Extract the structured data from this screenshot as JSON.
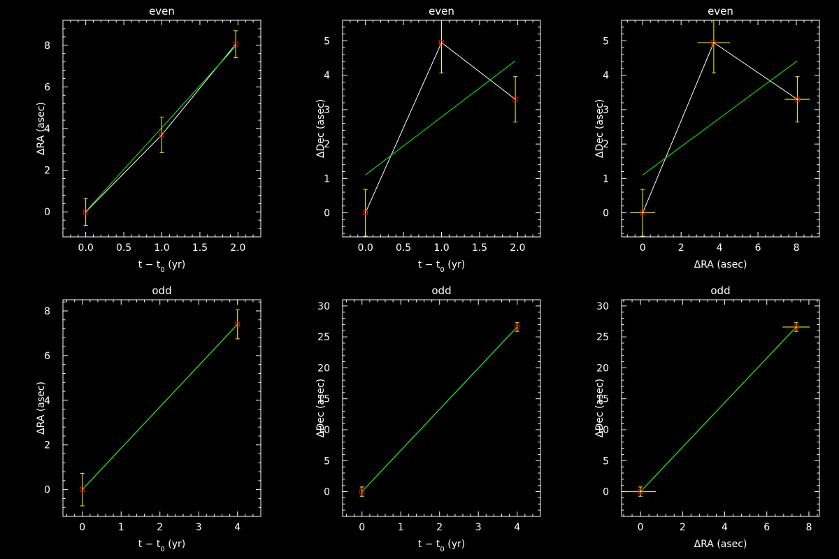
{
  "colors": {
    "background": "#000000",
    "axes": "#ffffff",
    "data_line": "#ffffff",
    "fit_line": "#00ff00",
    "error_bar": "#ffff00",
    "marker": "#ff0000"
  },
  "chart_data": [
    {
      "type": "line",
      "title": "even",
      "xlabel": "t − t",
      "xlabel_sub": "0",
      "xlabel_suffix": " (yr)",
      "ylabel": "ΔRA (asec)",
      "xlim": [
        -0.3,
        2.3
      ],
      "ylim": [
        -1.2,
        9.2
      ],
      "xticks": [
        0.0,
        0.5,
        1.0,
        1.5,
        2.0
      ],
      "xtick_labels": [
        "0.0",
        "0.5",
        "1.0",
        "1.5",
        "2.0"
      ],
      "yticks": [
        0,
        2,
        4,
        6,
        8
      ],
      "ytick_labels": [
        "0",
        "2",
        "4",
        "6",
        "8"
      ],
      "points": [
        {
          "x": 0.0,
          "y": 0.0,
          "yerr": 0.65
        },
        {
          "x": 1.0,
          "y": 3.7,
          "yerr": 0.85
        },
        {
          "x": 1.97,
          "y": 8.05,
          "yerr": 0.65
        }
      ],
      "fit": [
        [
          0.0,
          0.02
        ],
        [
          1.97,
          7.95
        ]
      ]
    },
    {
      "type": "line",
      "title": "even",
      "xlabel": "t − t",
      "xlabel_sub": "0",
      "xlabel_suffix": " (yr)",
      "ylabel": "ΔDec (asec)",
      "xlim": [
        -0.3,
        2.3
      ],
      "ylim": [
        -0.7,
        5.6
      ],
      "xticks": [
        0.0,
        0.5,
        1.0,
        1.5,
        2.0
      ],
      "xtick_labels": [
        "0.0",
        "0.5",
        "1.0",
        "1.5",
        "2.0"
      ],
      "yticks": [
        0,
        1,
        2,
        3,
        4,
        5
      ],
      "ytick_labels": [
        "0",
        "1",
        "2",
        "3",
        "4",
        "5"
      ],
      "points": [
        {
          "x": 0.0,
          "y": 0.0,
          "yerr": 0.68
        },
        {
          "x": 1.0,
          "y": 4.95,
          "yerr": 0.88
        },
        {
          "x": 1.97,
          "y": 3.3,
          "yerr": 0.66
        }
      ],
      "fit": [
        [
          0.0,
          1.1
        ],
        [
          1.97,
          4.42
        ]
      ]
    },
    {
      "type": "scatter",
      "title": "even",
      "xlabel": "ΔRA (asec)",
      "ylabel": "ΔDec (asec)",
      "xlim": [
        -1.1,
        9.2
      ],
      "ylim": [
        -0.7,
        5.6
      ],
      "xticks": [
        0,
        2,
        4,
        6,
        8
      ],
      "xtick_labels": [
        "0",
        "2",
        "4",
        "6",
        "8"
      ],
      "yticks": [
        0,
        1,
        2,
        3,
        4,
        5
      ],
      "ytick_labels": [
        "0",
        "1",
        "2",
        "3",
        "4",
        "5"
      ],
      "points": [
        {
          "x": 0.0,
          "y": 0.0,
          "xerr": 0.65,
          "yerr": 0.68
        },
        {
          "x": 3.7,
          "y": 4.95,
          "xerr": 0.85,
          "yerr": 0.88
        },
        {
          "x": 8.05,
          "y": 3.3,
          "xerr": 0.65,
          "yerr": 0.66
        }
      ],
      "fit": [
        [
          0.0,
          1.1
        ],
        [
          8.05,
          4.42
        ]
      ]
    },
    {
      "type": "line",
      "title": "odd",
      "xlabel": "t − t",
      "xlabel_sub": "0",
      "xlabel_suffix": " (yr)",
      "ylabel": "ΔRA (asec)",
      "xlim": [
        -0.5,
        4.6
      ],
      "ylim": [
        -1.2,
        8.5
      ],
      "xticks": [
        0,
        1,
        2,
        3,
        4
      ],
      "xtick_labels": [
        "0",
        "1",
        "2",
        "3",
        "4"
      ],
      "yticks": [
        0,
        2,
        4,
        6,
        8
      ],
      "ytick_labels": [
        "0",
        "2",
        "4",
        "6",
        "8"
      ],
      "points": [
        {
          "x": 0.0,
          "y": 0.0,
          "yerr": 0.73
        },
        {
          "x": 4.0,
          "y": 7.4,
          "yerr": 0.65
        }
      ],
      "fit": [
        [
          0.0,
          0.0
        ],
        [
          4.0,
          7.4
        ]
      ]
    },
    {
      "type": "line",
      "title": "odd",
      "xlabel": "t − t",
      "xlabel_sub": "0",
      "xlabel_suffix": " (yr)",
      "ylabel": "ΔDec (asec)",
      "xlim": [
        -0.5,
        4.6
      ],
      "ylim": [
        -4.0,
        31.0
      ],
      "xticks": [
        0,
        1,
        2,
        3,
        4
      ],
      "xtick_labels": [
        "0",
        "1",
        "2",
        "3",
        "4"
      ],
      "yticks": [
        0,
        5,
        10,
        15,
        20,
        25,
        30
      ],
      "ytick_labels": [
        "0",
        "5",
        "10",
        "15",
        "20",
        "25",
        "30"
      ],
      "points": [
        {
          "x": 0.0,
          "y": 0.0,
          "yerr": 0.75
        },
        {
          "x": 4.0,
          "y": 26.6,
          "yerr": 0.7
        }
      ],
      "fit": [
        [
          0.0,
          0.0
        ],
        [
          4.0,
          26.6
        ]
      ]
    },
    {
      "type": "scatter",
      "title": "odd",
      "xlabel": "ΔRA (asec)",
      "ylabel": "ΔDec (asec)",
      "xlim": [
        -0.9,
        8.5
      ],
      "ylim": [
        -4.0,
        31.0
      ],
      "xticks": [
        0,
        2,
        4,
        6,
        8
      ],
      "xtick_labels": [
        "0",
        "2",
        "4",
        "6",
        "8"
      ],
      "yticks": [
        0,
        5,
        10,
        15,
        20,
        25,
        30
      ],
      "ytick_labels": [
        "0",
        "5",
        "10",
        "15",
        "20",
        "25",
        "30"
      ],
      "points": [
        {
          "x": 0.0,
          "y": 0.0,
          "xerr": 0.73,
          "yerr": 0.75
        },
        {
          "x": 7.4,
          "y": 26.6,
          "xerr": 0.65,
          "yerr": 0.7
        }
      ],
      "fit": [
        [
          0.0,
          0.0
        ],
        [
          7.4,
          26.6
        ]
      ]
    }
  ]
}
